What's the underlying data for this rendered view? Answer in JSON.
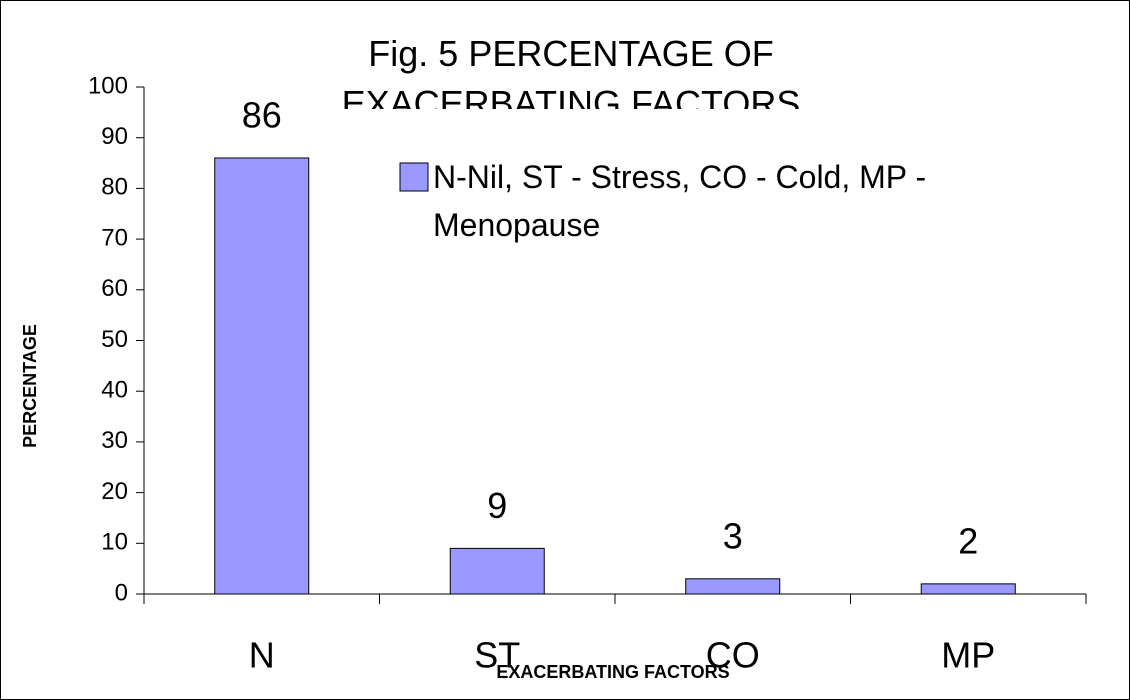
{
  "chart_data": {
    "type": "bar",
    "title": "Fig. 5 PERCENTAGE OF EXACERBATING FACTORS",
    "x_label": "EXACERBATING FACTORS",
    "y_label": "PERCENTAGE",
    "categories": [
      "N",
      "ST",
      "CO",
      "MP"
    ],
    "series": [
      {
        "name": "N-Nil, ST - Stress, CO - Cold, MP - Menopause",
        "color": "#9999ff",
        "values": [
          86,
          9,
          3,
          2
        ]
      }
    ],
    "ylim": [
      0,
      100
    ],
    "yticks": [
      0,
      10,
      20,
      30,
      40,
      50,
      60,
      70,
      80,
      90,
      100
    ],
    "grid": false,
    "legend": "upper right"
  }
}
